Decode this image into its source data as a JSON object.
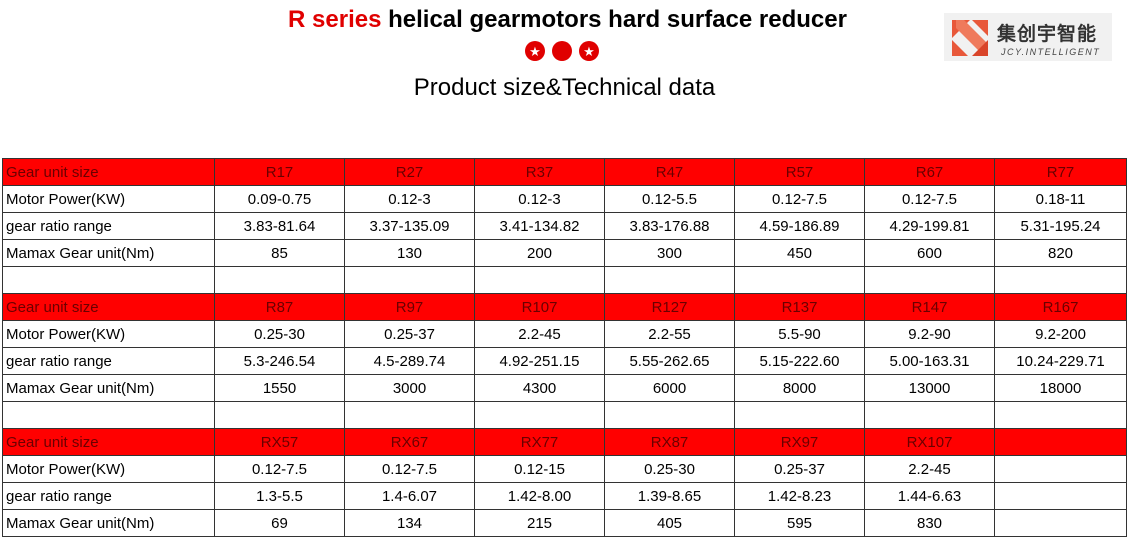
{
  "header": {
    "title_red": "R series",
    "title_rest": " helical gearmotors hard surface reducer",
    "subtitle": "Product size&Technical data"
  },
  "logo": {
    "name_cn": "集创宇智能",
    "name_en": "JCY.INTELLIGENT"
  },
  "icons": [
    "star-circle-icon",
    "circle-icon",
    "star-circle-icon"
  ],
  "colors": {
    "accent_red": "#e00000",
    "header_row_bg": "#ff0000"
  },
  "table": {
    "sections": [
      {
        "header_label": "Gear unit size",
        "models": [
          "R17",
          "R27",
          "R37",
          "R47",
          "R57",
          "R67",
          "R77"
        ],
        "rows": [
          {
            "label": "Motor  Power(KW)",
            "values": [
              "0.09-0.75",
              "0.12-3",
              "0.12-3",
              "0.12-5.5",
              "0.12-7.5",
              "0.12-7.5",
              "0.18-11"
            ]
          },
          {
            "label": "gear ratio range",
            "values": [
              "3.83-81.64",
              "3.37-135.09",
              "3.41-134.82",
              "3.83-176.88",
              "4.59-186.89",
              "4.29-199.81",
              "5.31-195.24"
            ]
          },
          {
            "label": "Mamax Gear unit(Nm)",
            "values": [
              "85",
              "130",
              "200",
              "300",
              "450",
              "600",
              "820"
            ]
          }
        ]
      },
      {
        "header_label": "Gear unit size",
        "models": [
          "R87",
          "R97",
          "R107",
          "R127",
          "R137",
          "R147",
          "R167"
        ],
        "rows": [
          {
            "label": "Motor  Power(KW)",
            "values": [
              "0.25-30",
              "0.25-37",
              "2.2-45",
              "2.2-55",
              "5.5-90",
              "9.2-90",
              "9.2-200"
            ]
          },
          {
            "label": "gear ratio range",
            "values": [
              "5.3-246.54",
              "4.5-289.74",
              "4.92-251.15",
              "5.55-262.65",
              "5.15-222.60",
              "5.00-163.31",
              "10.24-229.71"
            ]
          },
          {
            "label": "Mamax Gear unit(Nm)",
            "values": [
              "1550",
              "3000",
              "4300",
              "6000",
              "8000",
              "13000",
              "18000"
            ]
          }
        ]
      },
      {
        "header_label": "Gear unit size",
        "models": [
          "RX57",
          "RX67",
          "RX77",
          "RX87",
          "RX97",
          "RX107",
          ""
        ],
        "rows": [
          {
            "label": "Motor  Power(KW)",
            "values": [
              "0.12-7.5",
              "0.12-7.5",
              "0.12-15",
              "0.25-30",
              "0.25-37",
              "2.2-45",
              ""
            ]
          },
          {
            "label": "gear ratio range",
            "values": [
              "1.3-5.5",
              "1.4-6.07",
              "1.42-8.00",
              "1.39-8.65",
              "1.42-8.23",
              "1.44-6.63",
              ""
            ]
          },
          {
            "label": "Mamax Gear unit(Nm)",
            "values": [
              "69",
              "134",
              "215",
              "405",
              "595",
              "830",
              ""
            ]
          }
        ]
      }
    ]
  }
}
